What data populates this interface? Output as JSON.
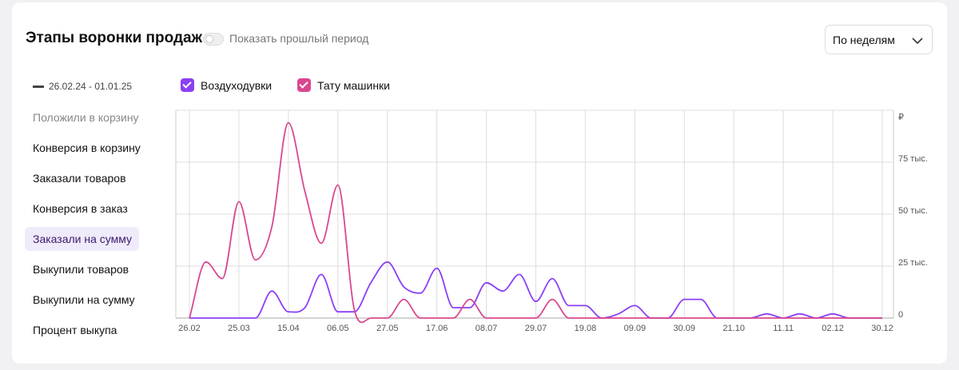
{
  "header": {
    "title": "Этапы воронки продаж",
    "toggle_label": "Показать прошлый период",
    "dropdown": "По неделям"
  },
  "period": "26.02.24 - 01.01.25",
  "metrics": {
    "items": [
      "Положили в корзину",
      "Конверсия в корзину",
      "Заказали товаров",
      "Конверсия в заказ",
      "Заказали на сумму",
      "Выкупили товаров",
      "Выкупили на сумму",
      "Процент выкупа"
    ],
    "selected": 4
  },
  "chart_data": {
    "type": "line",
    "categories": [
      "26.02",
      null,
      null,
      "25.03",
      null,
      null,
      "15.04",
      null,
      null,
      "06.05",
      null,
      null,
      "27.05",
      null,
      null,
      "17.06",
      null,
      null,
      "08.07",
      null,
      null,
      "29.07",
      null,
      null,
      "19.08",
      null,
      null,
      "09.09",
      null,
      null,
      "30.09",
      null,
      null,
      "21.10",
      null,
      null,
      "11.11",
      null,
      null,
      "02.12",
      null,
      null,
      "30.12"
    ],
    "series": [
      {
        "name": "Воздуходувки",
        "color": "#8b3ff5",
        "values": [
          0,
          0,
          0,
          0,
          0,
          13000,
          3000,
          5000,
          21000,
          3000,
          3000,
          17000,
          27000,
          15000,
          12000,
          24000,
          5000,
          5000,
          17000,
          13000,
          21000,
          8000,
          19000,
          6000,
          6000,
          0,
          2000,
          6000,
          0,
          0,
          9000,
          9000,
          0,
          0,
          0,
          2000,
          0,
          2000,
          0,
          2000,
          0,
          0,
          0
        ]
      },
      {
        "name": "Тату машинки",
        "color": "#d9478f",
        "values": [
          0,
          27000,
          19000,
          56000,
          28000,
          44000,
          94000,
          61000,
          36000,
          64000,
          4000,
          0,
          0,
          9000,
          0,
          0,
          0,
          9000,
          0,
          0,
          0,
          0,
          9000,
          0,
          0,
          0,
          0,
          0,
          0,
          0,
          0,
          0,
          0,
          0,
          0,
          0,
          0,
          0,
          0,
          0,
          0,
          0,
          0
        ]
      }
    ],
    "ylim": [
      0,
      100000
    ],
    "yticks": [
      0,
      {
        "value": 25000,
        "label": "25 тыс."
      },
      {
        "value": 50000,
        "label": "50 тыс."
      },
      {
        "value": 75000,
        "label": "75 тыс."
      }
    ],
    "y_unit": "₽",
    "grid": true
  }
}
